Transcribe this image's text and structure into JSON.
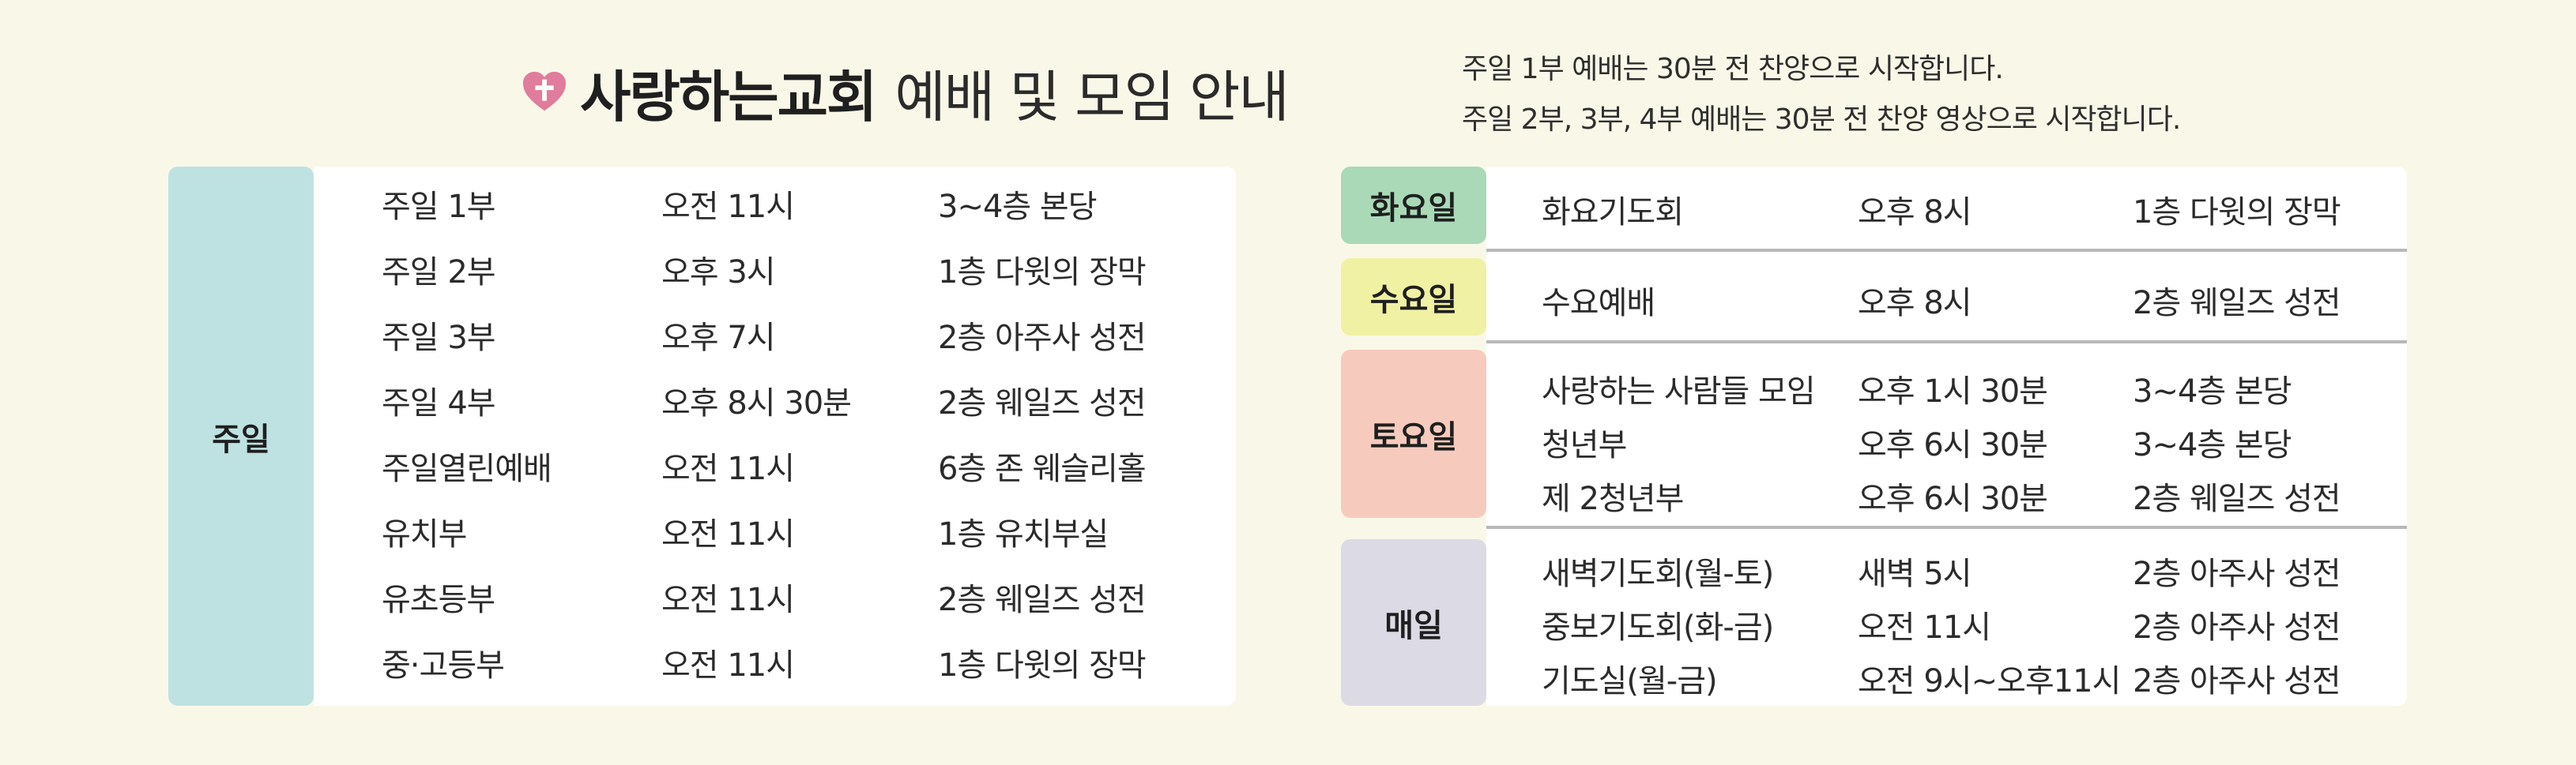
{
  "header": {
    "church_name": "사랑하는교회",
    "title_rest": "예배 및 모임 안내",
    "notes": [
      "주일 1부 예배는 30분 전 찬양으로 시작합니다.",
      "주일 2부, 3부, 4부 예배는 30분 전 찬양 영상으로 시작합니다."
    ],
    "logo_color": "#e07c9c"
  },
  "sunday": {
    "label": "주일",
    "color": "#bee2e2",
    "rows": [
      {
        "name": "주일 1부",
        "time": "오전 11시",
        "place": "3~4층 본당"
      },
      {
        "name": "주일 2부",
        "time": "오후 3시",
        "place": "1층 다윗의 장막"
      },
      {
        "name": "주일 3부",
        "time": "오후 7시",
        "place": "2층 아주사 성전"
      },
      {
        "name": "주일 4부",
        "time": "오후 8시 30분",
        "place": "2층 웨일즈 성전"
      },
      {
        "name": "주일열린예배",
        "time": "오전 11시",
        "place": "6층 존 웨슬리홀"
      },
      {
        "name": "유치부",
        "time": "오전 11시",
        "place": "1층 유치부실"
      },
      {
        "name": "유초등부",
        "time": "오전 11시",
        "place": "2층 웨일즈 성전"
      },
      {
        "name": "중·고등부",
        "time": "오전 11시",
        "place": "1층 다윗의 장막"
      }
    ]
  },
  "weekdays": [
    {
      "label": "화요일",
      "color": "#a9d9b7",
      "rows": [
        {
          "name": "화요기도회",
          "time": "오후 8시",
          "place": "1층 다윗의 장막"
        }
      ]
    },
    {
      "label": "수요일",
      "color": "#f1f1a4",
      "rows": [
        {
          "name": "수요예배",
          "time": "오후 8시",
          "place": "2층 웨일즈 성전"
        }
      ]
    },
    {
      "label": "토요일",
      "color": "#f6cbbd",
      "rows": [
        {
          "name": "사랑하는 사람들 모임",
          "time": "오후 1시 30분",
          "place": "3~4층 본당"
        },
        {
          "name": "청년부",
          "time": "오후 6시 30분",
          "place": "3~4층 본당"
        },
        {
          "name": "제 2청년부",
          "time": "오후 6시 30분",
          "place": "2층 웨일즈 성전"
        }
      ]
    },
    {
      "label": "매일",
      "color": "#dcdae4",
      "rows": [
        {
          "name": "새벽기도회(월-토)",
          "time": "새벽 5시",
          "place": "2층 아주사 성전"
        },
        {
          "name": "중보기도회(화-금)",
          "time": "오전 11시",
          "place": "2층 아주사 성전"
        },
        {
          "name": "기도실(월-금)",
          "time": "오전 9시~오후11시",
          "place": "2층 아주사 성전"
        }
      ]
    }
  ]
}
